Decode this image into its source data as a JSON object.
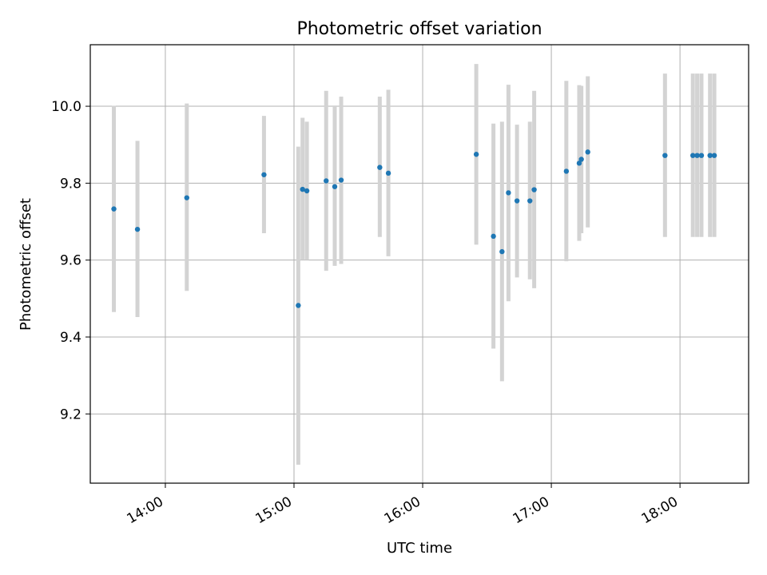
{
  "chart_data": {
    "type": "scatter",
    "title": "Photometric offset variation",
    "xlabel": "UTC time",
    "ylabel": "Photometric offset",
    "xlim": [
      "13:25",
      "18:32"
    ],
    "ylim": [
      9.02,
      10.16
    ],
    "x_ticks": [
      "14:00",
      "15:00",
      "16:00",
      "17:00",
      "18:00"
    ],
    "y_ticks": [
      9.2,
      9.4,
      9.6,
      9.8,
      10.0
    ],
    "y_tick_labels": [
      "9.2",
      "9.4",
      "9.6",
      "9.8",
      "10.0"
    ],
    "grid": true,
    "legend": "none",
    "marker_color": "#1f77b4",
    "errorbar_color": "#d3d3d3",
    "points": [
      {
        "time": "13:36",
        "y": 9.733,
        "ylow": 9.465,
        "yhigh": 10.001
      },
      {
        "time": "13:47",
        "y": 9.68,
        "ylow": 9.452,
        "yhigh": 9.91
      },
      {
        "time": "14:10",
        "y": 9.762,
        "ylow": 9.52,
        "yhigh": 10.007
      },
      {
        "time": "14:46",
        "y": 9.822,
        "ylow": 9.67,
        "yhigh": 9.975
      },
      {
        "time": "15:02",
        "y": 9.482,
        "ylow": 9.068,
        "yhigh": 9.895
      },
      {
        "time": "15:04",
        "y": 9.784,
        "ylow": 9.6,
        "yhigh": 9.97
      },
      {
        "time": "15:06",
        "y": 9.78,
        "ylow": 9.6,
        "yhigh": 9.96
      },
      {
        "time": "15:15",
        "y": 9.806,
        "ylow": 9.572,
        "yhigh": 10.04
      },
      {
        "time": "15:19",
        "y": 9.791,
        "ylow": 9.585,
        "yhigh": 10.0
      },
      {
        "time": "15:22",
        "y": 9.808,
        "ylow": 9.59,
        "yhigh": 10.025
      },
      {
        "time": "15:40",
        "y": 9.841,
        "ylow": 9.66,
        "yhigh": 10.025
      },
      {
        "time": "15:44",
        "y": 9.826,
        "ylow": 9.61,
        "yhigh": 10.043
      },
      {
        "time": "16:25",
        "y": 9.875,
        "ylow": 9.64,
        "yhigh": 10.11
      },
      {
        "time": "16:33",
        "y": 9.662,
        "ylow": 9.37,
        "yhigh": 9.955
      },
      {
        "time": "16:37",
        "y": 9.622,
        "ylow": 9.285,
        "yhigh": 9.96
      },
      {
        "time": "16:40",
        "y": 9.775,
        "ylow": 9.493,
        "yhigh": 10.056
      },
      {
        "time": "16:44",
        "y": 9.754,
        "ylow": 9.555,
        "yhigh": 9.952
      },
      {
        "time": "16:50",
        "y": 9.754,
        "ylow": 9.55,
        "yhigh": 9.96
      },
      {
        "time": "16:52",
        "y": 9.783,
        "ylow": 9.527,
        "yhigh": 10.04
      },
      {
        "time": "17:07",
        "y": 9.831,
        "ylow": 9.597,
        "yhigh": 10.066
      },
      {
        "time": "17:13",
        "y": 9.852,
        "ylow": 9.65,
        "yhigh": 10.055
      },
      {
        "time": "17:14",
        "y": 9.862,
        "ylow": 9.67,
        "yhigh": 10.053
      },
      {
        "time": "17:17",
        "y": 9.881,
        "ylow": 9.685,
        "yhigh": 10.078
      },
      {
        "time": "17:53",
        "y": 9.872,
        "ylow": 9.66,
        "yhigh": 10.085
      },
      {
        "time": "18:06",
        "y": 9.872,
        "ylow": 9.66,
        "yhigh": 10.085
      },
      {
        "time": "18:08",
        "y": 9.872,
        "ylow": 9.66,
        "yhigh": 10.085
      },
      {
        "time": "18:10",
        "y": 9.872,
        "ylow": 9.66,
        "yhigh": 10.085
      },
      {
        "time": "18:14",
        "y": 9.872,
        "ylow": 9.66,
        "yhigh": 10.085
      },
      {
        "time": "18:16",
        "y": 9.872,
        "ylow": 9.66,
        "yhigh": 10.085
      }
    ]
  }
}
